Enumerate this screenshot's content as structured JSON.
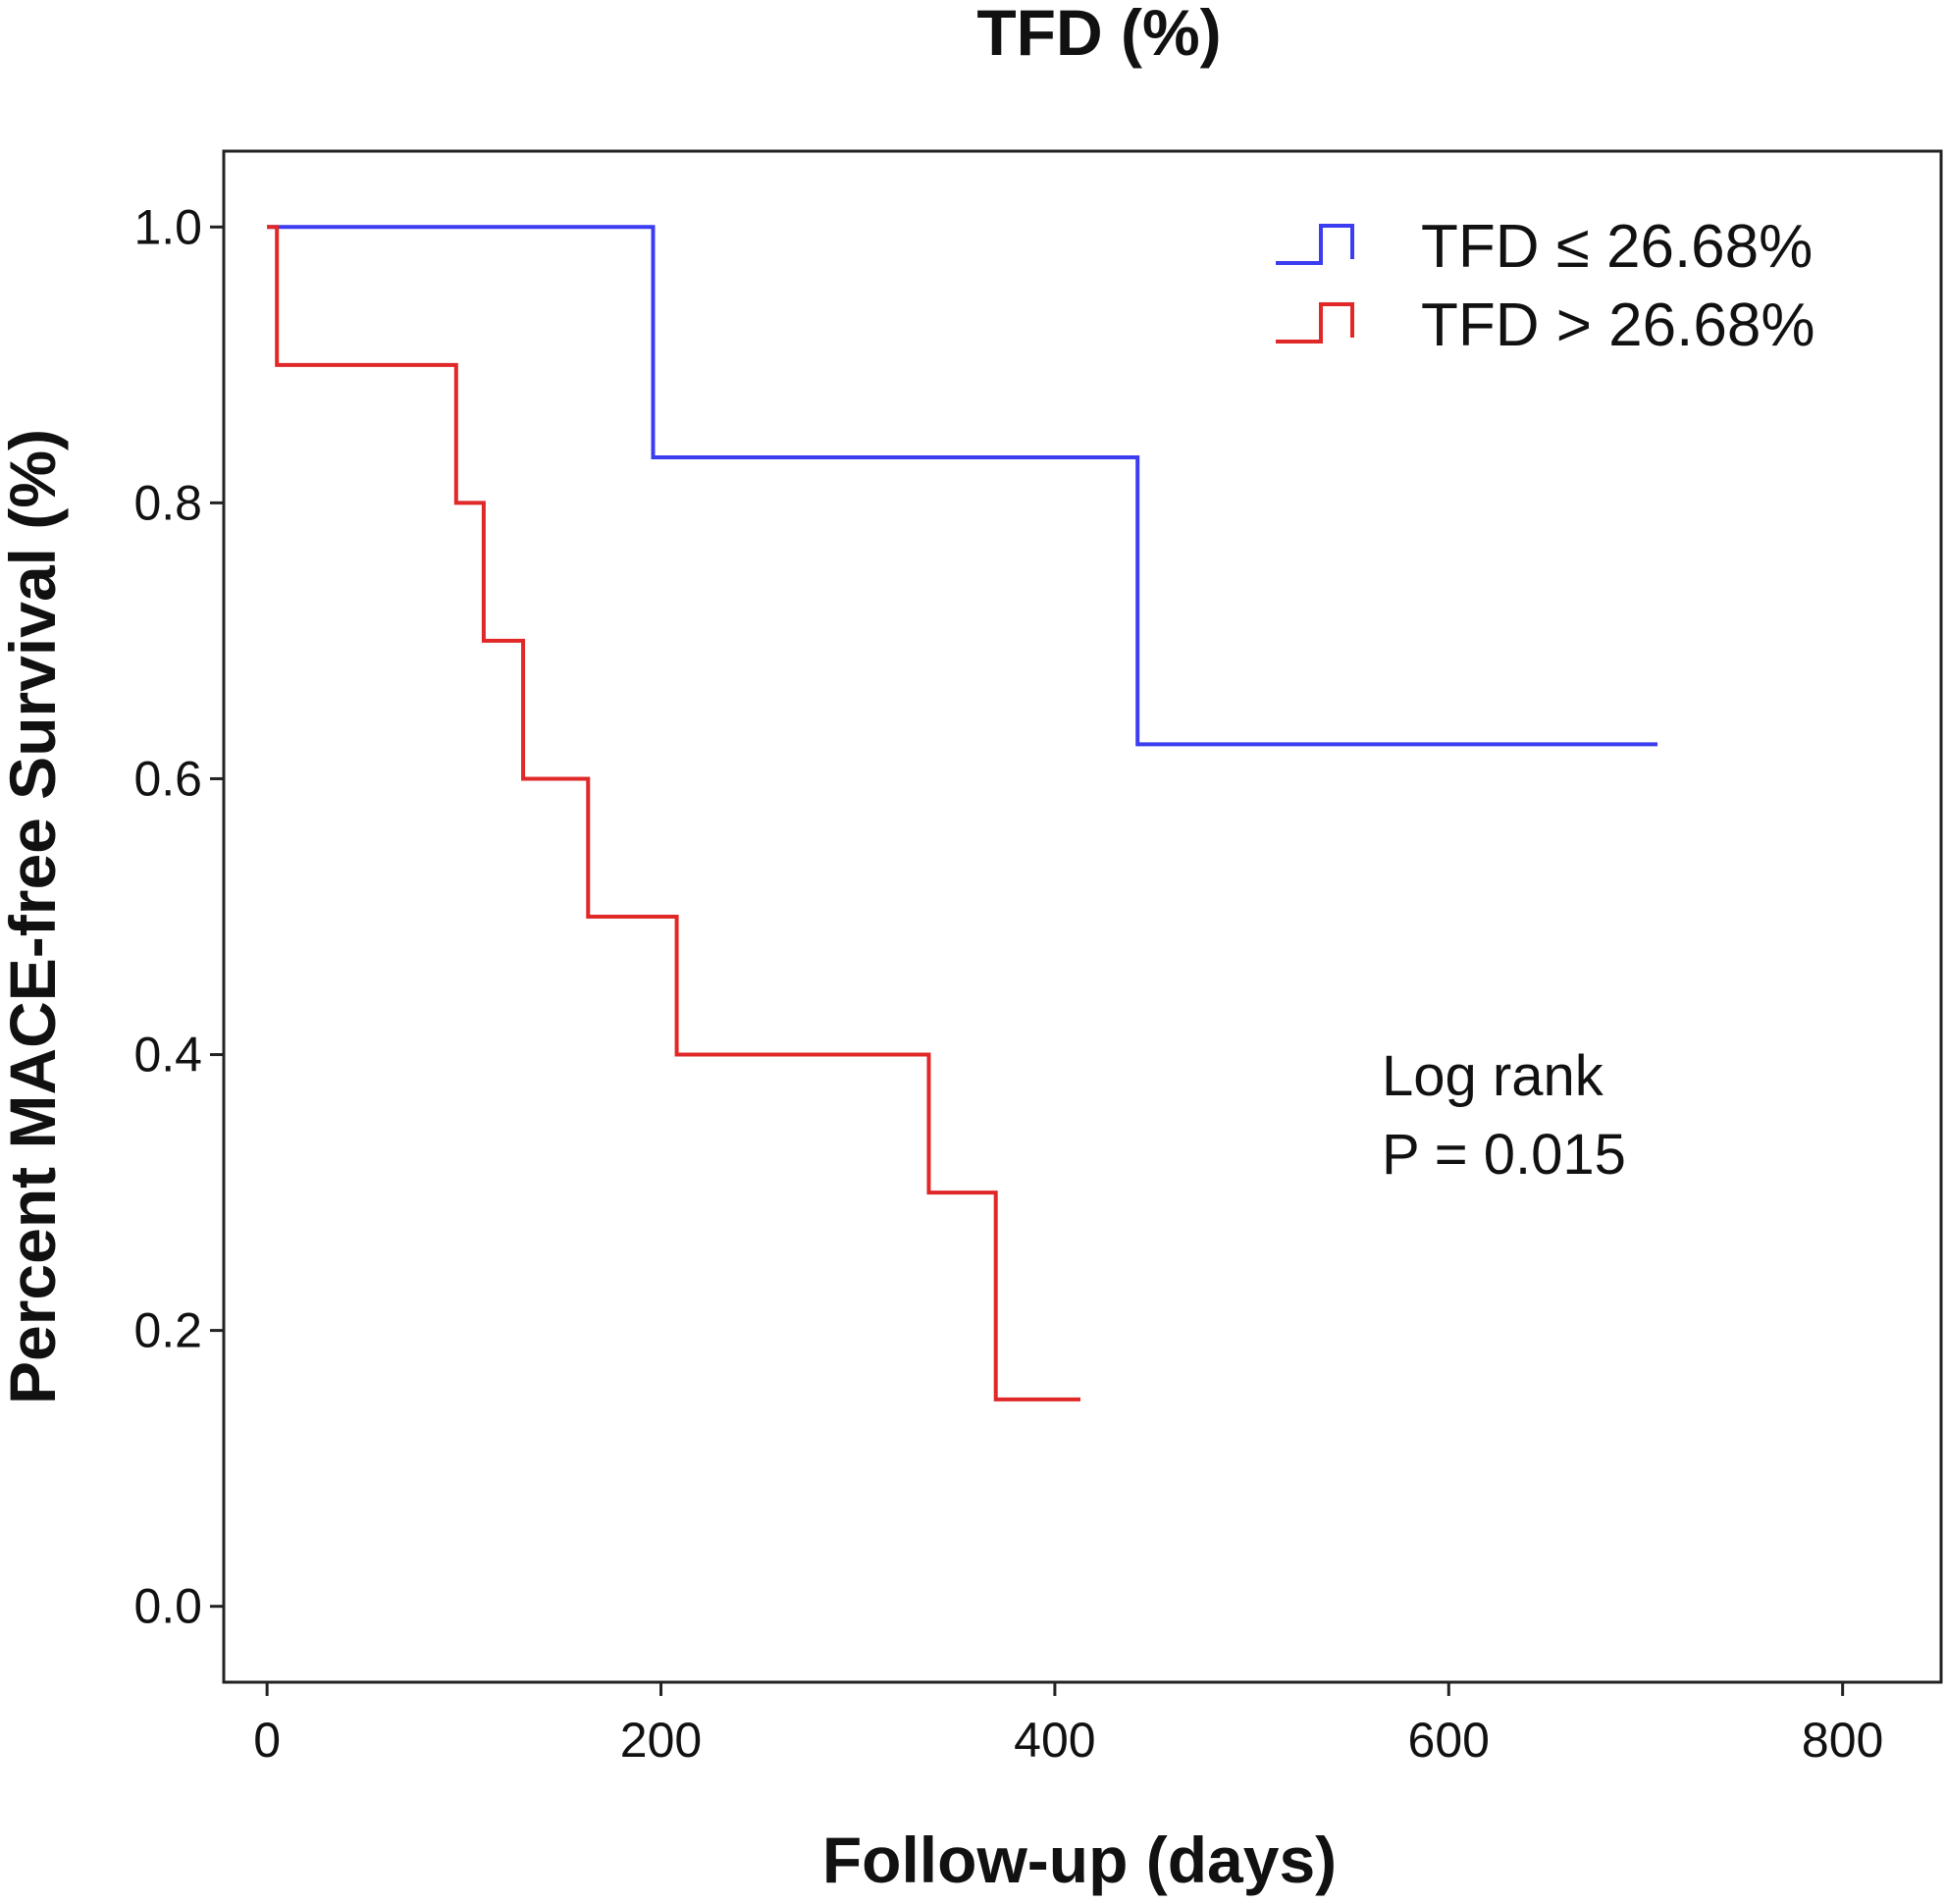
{
  "chart_data": {
    "type": "line",
    "subtype": "kaplan-meier step",
    "title": "TFD (%)",
    "xlabel": "Follow-up (days)",
    "ylabel": "Percent MACE-free Survival (%)",
    "xlim": [
      -22,
      850
    ],
    "ylim": [
      -0.055,
      1.055
    ],
    "xticks": [
      0,
      200,
      400,
      600,
      800
    ],
    "yticks": [
      0.0,
      0.2,
      0.4,
      0.6,
      0.8,
      1.0
    ],
    "xtick_labels": [
      "0",
      "200",
      "400",
      "600",
      "800"
    ],
    "ytick_labels": [
      "0.0",
      "0.2",
      "0.4",
      "0.6",
      "0.8",
      "1.0"
    ],
    "grid": false,
    "legend_position": "top-right",
    "series": [
      {
        "name": "TFD ≤ 26.68%",
        "color": "#3c3cf0",
        "times": [
          0,
          196,
          442,
          706
        ],
        "survival": [
          1.0,
          0.833,
          0.625,
          0.625
        ]
      },
      {
        "name": "TFD > 26.68%",
        "color": "#e02828",
        "times": [
          0,
          5,
          96,
          110,
          130,
          163,
          208,
          336,
          370,
          413
        ],
        "survival": [
          1.0,
          0.9,
          0.8,
          0.7,
          0.6,
          0.5,
          0.4,
          0.3,
          0.15,
          0.15
        ]
      }
    ],
    "annotations": [
      "Log rank",
      "P = 0.015"
    ]
  }
}
